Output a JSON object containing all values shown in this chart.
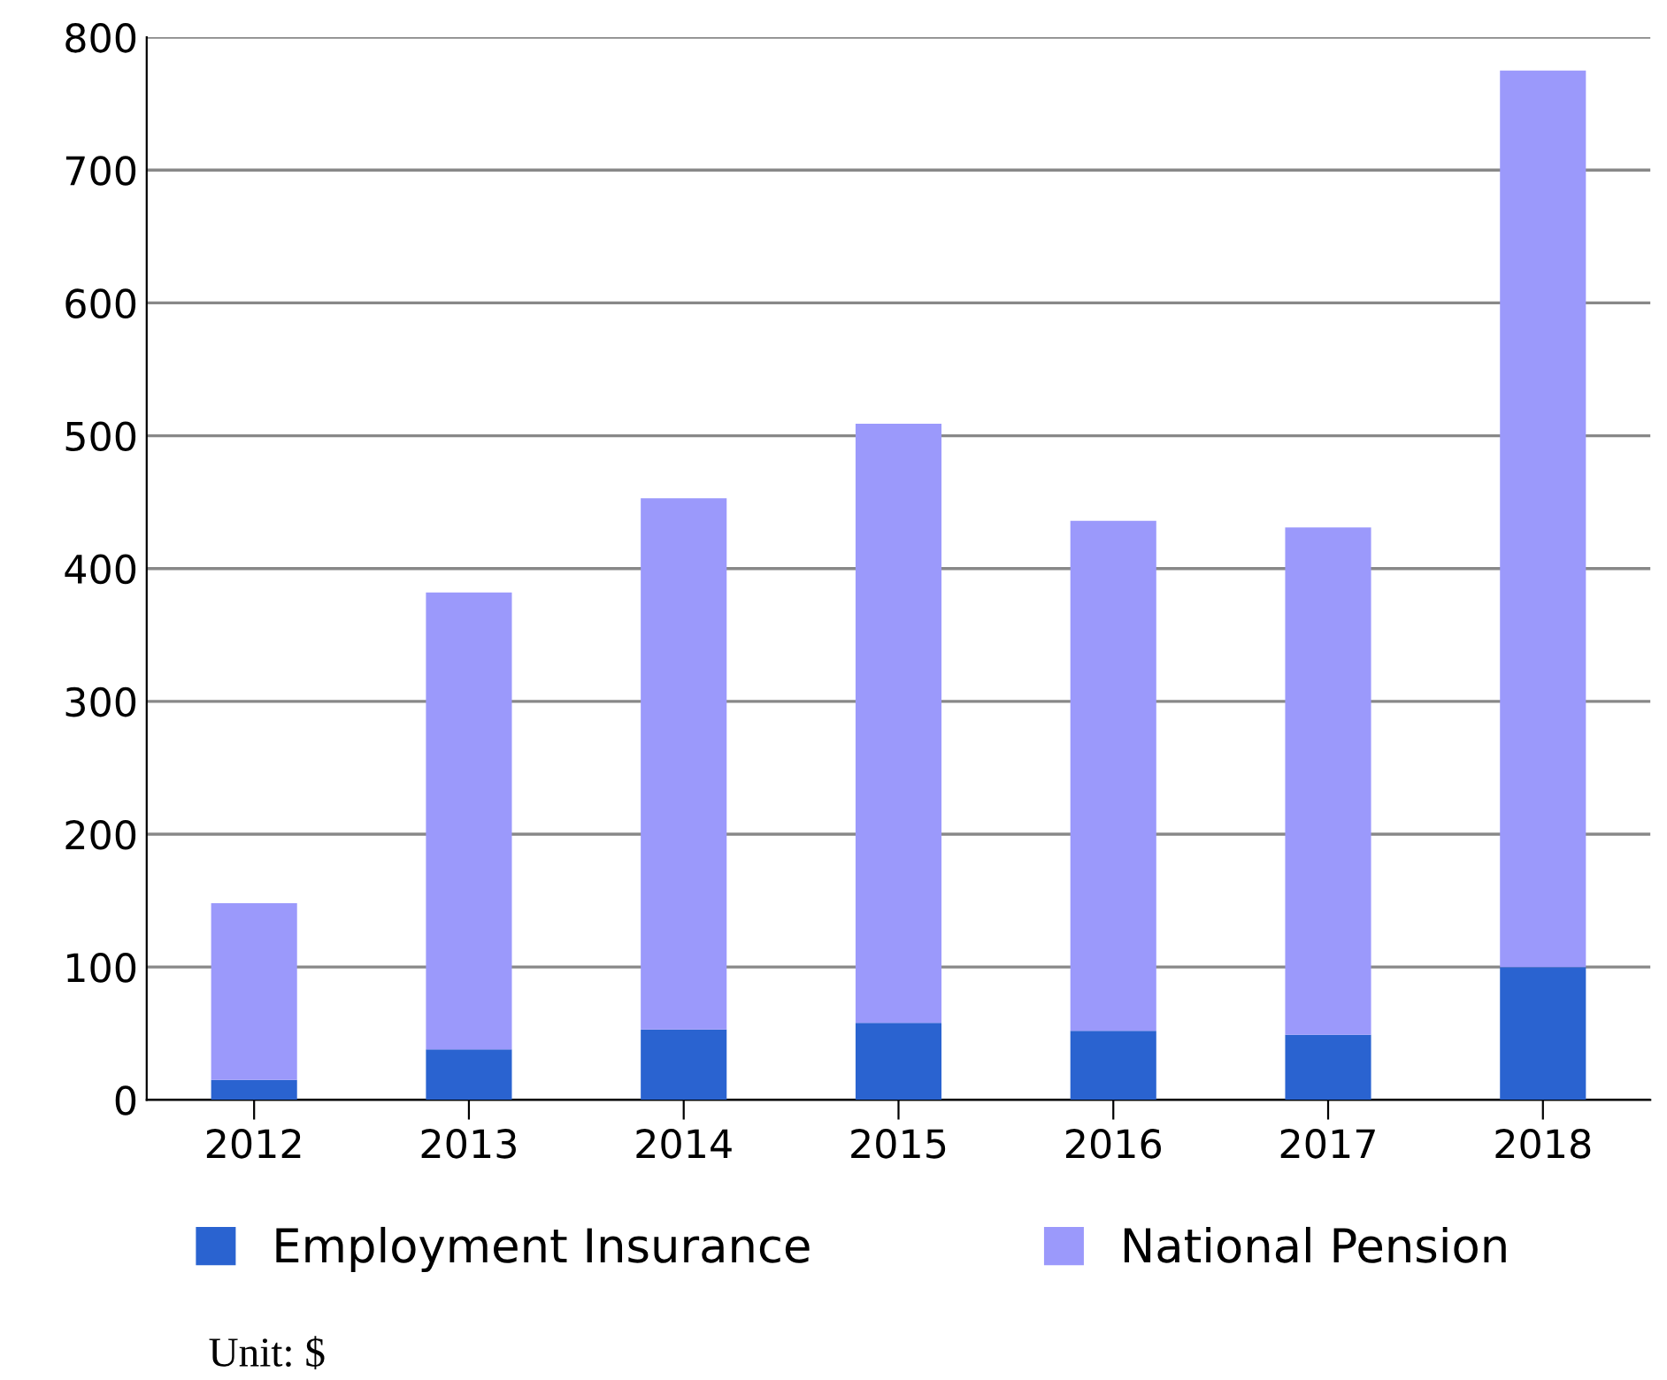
{
  "chart_data": {
    "type": "bar",
    "stacked": true,
    "categories": [
      "2012",
      "2013",
      "2014",
      "2015",
      "2016",
      "2017",
      "2018"
    ],
    "series": [
      {
        "name": "Employment Insurance",
        "color": "#2a63d0",
        "values": [
          15,
          38,
          53,
          58,
          52,
          49,
          100
        ]
      },
      {
        "name": "National Pension",
        "color": "#9b99fb",
        "values": [
          133,
          344,
          400,
          451,
          384,
          382,
          675
        ]
      }
    ],
    "ylim": [
      0,
      800
    ],
    "yticks": [
      0,
      100,
      200,
      300,
      400,
      500,
      600,
      700,
      800
    ],
    "grid": "y",
    "legend": "bottom",
    "annotations": [
      "Unit: $"
    ]
  }
}
